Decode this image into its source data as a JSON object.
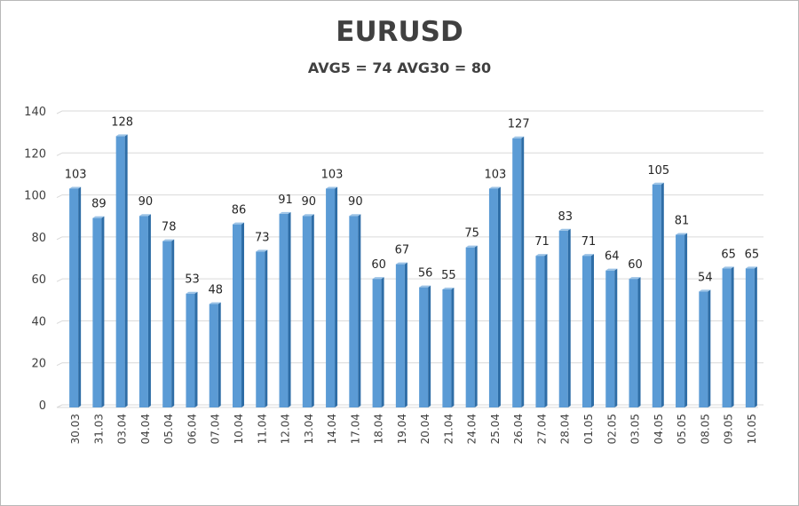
{
  "chart_data": {
    "type": "bar",
    "title": "EURUSD",
    "subtitle": "AVG5 = 74 AVG30 = 80",
    "categories": [
      "30.03",
      "31.03",
      "03.04",
      "04.04",
      "05.04",
      "06.04",
      "07.04",
      "10.04",
      "11.04",
      "12.04",
      "13.04",
      "14.04",
      "17.04",
      "18.04",
      "19.04",
      "20.04",
      "21.04",
      "24.04",
      "25.04",
      "26.04",
      "27.04",
      "28.04",
      "01.05",
      "02.05",
      "03.05",
      "04.05",
      "05.05",
      "08.05",
      "09.05",
      "10.05"
    ],
    "values": [
      103,
      89,
      128,
      90,
      78,
      53,
      48,
      86,
      73,
      91,
      90,
      103,
      90,
      60,
      67,
      56,
      55,
      75,
      103,
      127,
      71,
      83,
      71,
      64,
      60,
      105,
      81,
      54,
      65,
      65
    ],
    "ylim": [
      0,
      140
    ],
    "yticks": [
      0,
      20,
      40,
      60,
      80,
      100,
      120,
      140
    ],
    "grid": true,
    "legend": "none",
    "data_labels": true,
    "colors": {
      "bar_front": "#5b9bd5",
      "bar_side": "#2e6da6",
      "bar_top": "#9cc3e6",
      "grid": "#d9d9d9",
      "text": "#404040"
    }
  }
}
